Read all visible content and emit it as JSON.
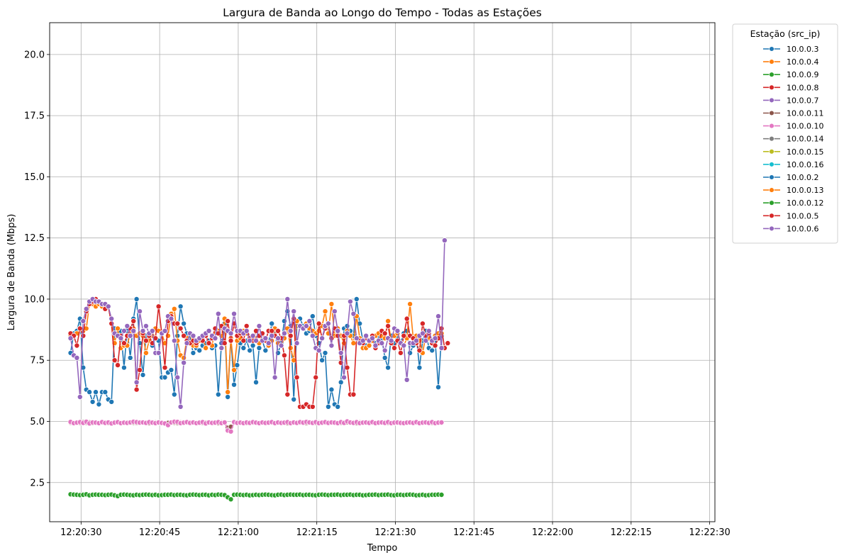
{
  "chart_data": {
    "type": "line",
    "title": "Largura de Banda ao Longo do Tempo - Todas as Estações",
    "xlabel": "Tempo",
    "ylabel": "Largura de Banda (Mbps)",
    "x_start": "12:20:28",
    "x_step_seconds": 0.6,
    "x_ticks": [
      "12:20:30",
      "12:20:45",
      "12:21:00",
      "12:21:15",
      "12:21:30",
      "12:21:45",
      "12:22:00",
      "12:22:15",
      "12:22:30"
    ],
    "xlim": [
      "12:20:24",
      "12:22:31"
    ],
    "ylim": [
      0.9,
      21.3
    ],
    "y_ticks": [
      2.5,
      5.0,
      7.5,
      10.0,
      12.5,
      15.0,
      17.5,
      20.0
    ],
    "y_tick_labels": [
      "2.5",
      "5.0",
      "7.5",
      "10.0",
      "12.5",
      "15.0",
      "17.5",
      "20.0"
    ],
    "grid": true,
    "legend_title": "Estação (src_ip)",
    "legend_position": "outside-right",
    "series": [
      {
        "name": "10.0.0.3",
        "color": "#1f77b4",
        "values": [
          7.8,
          8.6,
          8.7,
          9.2,
          7.2,
          6.3,
          6.2,
          5.8,
          6.2,
          5.7,
          6.2,
          6.2,
          5.9,
          5.8,
          8.8,
          8.6,
          8.7,
          7.2,
          8.8,
          7.6,
          9.2,
          10.0,
          8.2,
          6.9,
          8.5,
          8.3,
          8.1,
          8.4,
          8.3,
          6.8,
          6.8,
          7.0,
          7.1,
          6.1,
          8.5,
          9.7,
          9.0,
          8.6,
          8.4,
          7.8,
          8.0,
          7.9,
          8.1,
          8.2,
          8.3,
          8.0,
          8.1,
          6.1,
          8.2,
          9.0,
          6.0,
          8.4,
          6.5,
          7.3,
          8.2,
          8.0,
          8.3,
          7.9,
          8.1,
          6.6,
          8.0,
          8.3,
          7.9,
          8.2,
          9.0,
          8.7,
          7.8,
          8.2,
          9.1,
          9.5,
          8.9,
          5.9,
          8.9,
          9.2,
          8.9,
          8.6,
          8.7,
          9.3,
          8.5,
          8.2,
          7.5,
          7.8,
          5.6,
          6.3,
          5.7,
          5.6,
          6.6,
          8.8,
          8.9,
          8.7,
          8.5,
          10.0,
          9.0,
          8.3,
          8.1,
          8.3,
          8.5,
          8.2,
          8.5,
          8.4,
          7.6,
          7.2,
          8.5,
          8.2,
          8.4,
          8.2,
          8.6,
          8.7,
          7.8,
          8.1,
          8.5,
          7.2,
          8.3,
          8.7,
          8.0,
          7.9,
          8.3,
          6.4,
          8.5
        ]
      },
      {
        "name": "10.0.0.4",
        "color": "#ff7f0e",
        "values": [
          8.5,
          8.5,
          8.6,
          8.8,
          8.7,
          8.8,
          9.8,
          9.8,
          9.7,
          9.8,
          9.7,
          9.6,
          9.7,
          9.0,
          8.2,
          8.8,
          8.0,
          8.1,
          8.1,
          8.6,
          8.8,
          8.5,
          8.6,
          8.5,
          7.8,
          8.3,
          8.5,
          8.8,
          8.7,
          8.6,
          8.2,
          8.5,
          9.4,
          9.6,
          8.3,
          7.7,
          7.6,
          8.4,
          8.6,
          8.1,
          8.1,
          8.3,
          8.5,
          8.0,
          8.2,
          8.1,
          8.8,
          8.7,
          8.5,
          9.2,
          6.2,
          8.4,
          7.1,
          8.3,
          8.4,
          8.7,
          8.6,
          8.4,
          8.5,
          8.4,
          8.2,
          8.6,
          8.4,
          8.1,
          8.3,
          8.8,
          8.2,
          8.1,
          8.4,
          8.8,
          8.0,
          7.5,
          9.1,
          8.9,
          8.8,
          9.0,
          8.8,
          8.7,
          8.6,
          8.7,
          8.9,
          9.5,
          8.6,
          9.8,
          8.5,
          8.8,
          8.5,
          8.2,
          8.7,
          8.5,
          8.2,
          9.3,
          8.4,
          8.0,
          8.0,
          8.1,
          8.3,
          8.5,
          8.6,
          8.5,
          8.4,
          9.1,
          8.3,
          8.5,
          8.6,
          8.2,
          8.1,
          8.4,
          9.8,
          8.4,
          8.5,
          8.3,
          7.8,
          8.5,
          8.4,
          8.2,
          8.5,
          8.6,
          8.6
        ]
      },
      {
        "name": "10.0.0.9",
        "color": "#2ca02c",
        "values": [
          2.02,
          2.01,
          2.0,
          1.99,
          2.0,
          2.02,
          1.98,
          2.0,
          2.01,
          2.0,
          2.0,
          1.99,
          2.0,
          2.01,
          1.98,
          1.95,
          2.0,
          2.01,
          2.0,
          1.99,
          1.98,
          2.0,
          1.99,
          2.0,
          2.01,
          2.0,
          1.99,
          2.0,
          1.98,
          1.99,
          2.0,
          2.0,
          2.01,
          1.99,
          2.0,
          2.0,
          1.99,
          1.98,
          2.0,
          2.01,
          2.0,
          1.99,
          2.0,
          2.0,
          1.98,
          2.0,
          1.99,
          2.01,
          2.0,
          1.99,
          1.9,
          1.82,
          2.0,
          2.01,
          2.0,
          1.99,
          2.0,
          1.98,
          1.99,
          2.0,
          1.99,
          2.0,
          2.01,
          2.0,
          1.99,
          1.98,
          2.0,
          2.01,
          1.99,
          2.0,
          2.01,
          2.0,
          2.0,
          2.01,
          1.99,
          2.0,
          2.0,
          1.99,
          1.98,
          2.0,
          2.01,
          2.0,
          1.99,
          2.0,
          2.0,
          2.01,
          1.99,
          2.0,
          2.0,
          2.01,
          1.99,
          2.0,
          2.0,
          1.98,
          1.99,
          2.0,
          2.0,
          2.01,
          1.99,
          2.0,
          2.0,
          2.01,
          1.99,
          1.98,
          2.0,
          2.0,
          1.99,
          2.0,
          2.01,
          2.0,
          1.98,
          1.99,
          2.0,
          1.98,
          1.99,
          2.0,
          2.0,
          2.01,
          2.0
        ]
      },
      {
        "name": "10.0.0.8",
        "color": "#d62728",
        "values": [
          8.6,
          8.5,
          8.1,
          8.8,
          8.5,
          9.5,
          9.8,
          9.9,
          10.0,
          9.9,
          9.8,
          9.6,
          9.7,
          9.0,
          7.5,
          7.3,
          8.5,
          8.2,
          8.5,
          8.8,
          9.1,
          6.3,
          7.1,
          8.6,
          8.3,
          8.5,
          8.2,
          8.4,
          9.7,
          8.6,
          7.2,
          9.1,
          9.3,
          9.0,
          9.0,
          8.8,
          8.5,
          8.3,
          8.2,
          8.3,
          8.2,
          8.4,
          8.3,
          8.5,
          8.2,
          8.4,
          8.8,
          8.6,
          8.9,
          8.2,
          9.1,
          8.3,
          9.0,
          8.5,
          8.6,
          8.3,
          8.9,
          8.4,
          8.3,
          8.7,
          8.5,
          8.6,
          8.3,
          8.7,
          8.7,
          8.5,
          8.7,
          8.4,
          7.7,
          6.1,
          8.5,
          9.2,
          6.8,
          5.6,
          5.6,
          5.7,
          5.6,
          5.6,
          6.8,
          9.0,
          8.4,
          8.8,
          9.0,
          8.4,
          8.8,
          8.5,
          7.4,
          8.5,
          7.2,
          6.1,
          6.1,
          8.4,
          8.3,
          8.2,
          8.4,
          8.3,
          8.5,
          8.0,
          8.2,
          8.7,
          8.6,
          8.9,
          8.2,
          8.0,
          8.3,
          7.8,
          8.5,
          9.2,
          8.5,
          8.4,
          8.2,
          7.9,
          9.0,
          8.5,
          8.6,
          8.2,
          8.1,
          8.4,
          8.8,
          8.0,
          8.2
        ]
      },
      {
        "name": "10.0.0.7",
        "color": "#9467bd",
        "values": [
          8.4,
          7.7,
          7.6,
          6.0,
          9.1,
          9.6,
          9.9,
          10.0,
          9.9,
          9.9,
          9.8,
          9.8,
          9.7,
          9.2,
          8.6,
          8.5,
          8.4,
          8.7,
          8.9,
          8.5,
          8.7,
          6.6,
          9.5,
          8.7,
          8.9,
          8.6,
          8.7,
          7.8,
          7.8,
          8.6,
          8.7,
          9.3,
          9.2,
          8.3,
          6.8,
          5.6,
          7.4,
          8.2,
          8.6,
          8.5,
          8.3,
          8.4,
          8.5,
          8.6,
          8.7,
          8.5,
          8.4,
          9.4,
          8.0,
          8.8,
          8.7,
          8.6,
          9.4,
          8.7,
          8.7,
          8.6,
          8.7,
          8.3,
          8.5,
          8.3,
          8.9,
          8.3,
          8.4,
          8.2,
          8.5,
          6.8,
          8.4,
          8.1,
          8.6,
          10.0,
          8.7,
          9.5,
          8.2,
          8.9,
          8.8,
          8.9,
          9.1,
          8.5,
          8.0,
          7.9,
          8.4,
          8.9,
          9.0,
          8.1,
          9.5,
          8.7,
          7.8,
          6.8,
          8.6,
          9.9,
          9.4,
          8.4,
          8.2,
          8.3,
          8.5,
          8.3,
          8.4,
          8.1,
          8.3,
          8.2,
          7.9,
          8.4,
          8.3,
          8.8,
          8.7,
          8.2,
          8.1,
          6.7,
          8.2,
          8.2,
          8.3,
          8.5,
          8.6,
          8.3,
          8.7,
          8.3,
          8.4,
          9.3,
          8.0,
          12.4
        ]
      },
      {
        "name": "10.0.0.11",
        "color": "#8c564b",
        "values": [
          4.95,
          4.93,
          4.96,
          4.94,
          4.97,
          4.95,
          4.96,
          4.93,
          4.95,
          4.94,
          4.96,
          4.95,
          4.93,
          4.94,
          4.95,
          4.96,
          4.94,
          4.95,
          4.93,
          4.96,
          4.95,
          4.94,
          4.96,
          4.95,
          4.94,
          4.93,
          4.95,
          4.96,
          4.94,
          4.95,
          4.93,
          4.94,
          4.96,
          4.95,
          4.94,
          4.96,
          4.93,
          4.95,
          4.94,
          4.96,
          4.95,
          4.93,
          4.94,
          4.95,
          4.96,
          4.94,
          4.95,
          4.93,
          4.96,
          4.95,
          4.74,
          4.78,
          4.95,
          4.94,
          4.96,
          4.95,
          4.93,
          4.94,
          4.95,
          4.96,
          4.94,
          4.95,
          4.93,
          4.96,
          4.95,
          4.94,
          4.96,
          4.95,
          4.94,
          4.93,
          4.95,
          4.96,
          4.94,
          4.95,
          4.93,
          4.94,
          4.96,
          4.95,
          4.94,
          4.96,
          4.93,
          4.95,
          4.94,
          4.96,
          4.95,
          4.93,
          4.94,
          4.95,
          4.96,
          4.94,
          4.95,
          4.93,
          4.96,
          4.95,
          4.94,
          4.96,
          4.95,
          4.94,
          4.93,
          4.95,
          4.96,
          4.94,
          4.95,
          4.93,
          4.94,
          4.96,
          4.95,
          4.94,
          4.96,
          4.93,
          4.95,
          4.94,
          4.96,
          4.95,
          4.93,
          4.94,
          4.95,
          4.96,
          4.94
        ]
      },
      {
        "name": "10.0.0.10",
        "color": "#e377c2",
        "values": [
          4.98,
          4.93,
          4.95,
          4.97,
          4.94,
          4.99,
          4.92,
          4.96,
          4.95,
          4.93,
          4.97,
          4.94,
          4.96,
          4.92,
          4.95,
          4.97,
          4.93,
          4.95,
          4.94,
          4.96,
          4.99,
          4.97,
          4.95,
          4.96,
          4.94,
          4.97,
          4.95,
          4.93,
          4.96,
          4.94,
          4.92,
          4.85,
          4.96,
          4.99,
          4.98,
          4.93,
          4.95,
          4.97,
          4.94,
          4.96,
          4.93,
          4.95,
          4.97,
          4.92,
          4.96,
          4.94,
          4.95,
          4.97,
          4.93,
          4.96,
          4.63,
          4.59,
          4.97,
          4.94,
          4.95,
          4.93,
          4.96,
          4.94,
          4.97,
          4.95,
          4.93,
          4.96,
          4.94,
          4.95,
          4.97,
          4.93,
          4.96,
          4.94,
          4.95,
          4.97,
          4.93,
          4.96,
          4.94,
          4.97,
          4.95,
          4.98,
          4.96,
          4.94,
          4.97,
          4.93,
          4.95,
          4.97,
          4.94,
          4.96,
          4.95,
          4.93,
          4.97,
          4.94,
          5.0,
          4.96,
          4.94,
          4.97,
          4.93,
          4.95,
          4.96,
          4.94,
          4.97,
          4.93,
          4.95,
          4.96,
          4.94,
          4.97,
          4.93,
          4.95,
          4.96,
          4.94,
          4.93,
          4.95,
          4.96,
          4.94,
          4.97,
          4.93,
          4.95,
          4.96,
          4.94,
          4.97,
          4.93,
          4.95,
          4.96
        ]
      },
      {
        "name": "10.0.0.14",
        "color": "#7f7f7f",
        "values": []
      },
      {
        "name": "10.0.0.15",
        "color": "#bcbd22",
        "values": []
      },
      {
        "name": "10.0.0.16",
        "color": "#17becf",
        "values": []
      },
      {
        "name": "10.0.0.2",
        "color": "#1f77b4",
        "values": []
      },
      {
        "name": "10.0.0.13",
        "color": "#ff7f0e",
        "values": []
      },
      {
        "name": "10.0.0.12",
        "color": "#2ca02c",
        "values": []
      },
      {
        "name": "10.0.0.5",
        "color": "#d62728",
        "values": []
      },
      {
        "name": "10.0.0.6",
        "color": "#9467bd",
        "values": []
      }
    ]
  }
}
